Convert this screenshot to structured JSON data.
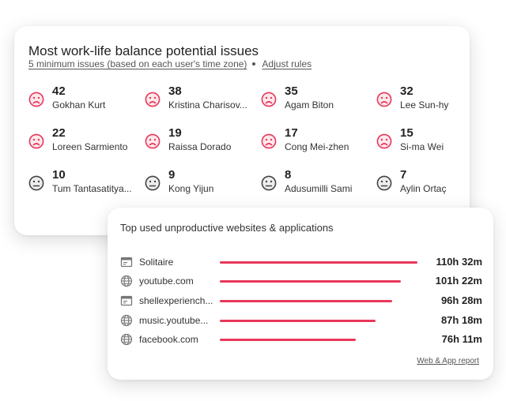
{
  "issues_card": {
    "title": "Most work-life balance potential issues",
    "criteria_link": "5 minimum issues (based on each user's time zone)",
    "adjust_link": "Adjust rules",
    "colors": {
      "sad": "#e8375a",
      "neutral": "#444444"
    },
    "users": [
      {
        "count": "42",
        "name": "Gokhan Kurt",
        "face": "sad"
      },
      {
        "count": "38",
        "name": "Kristina Charisov...",
        "face": "sad"
      },
      {
        "count": "35",
        "name": "Agam Biton",
        "face": "sad"
      },
      {
        "count": "32",
        "name": "Lee Sun-hy",
        "face": "sad"
      },
      {
        "count": "22",
        "name": "Loreen Sarmiento",
        "face": "sad"
      },
      {
        "count": "19",
        "name": "Raissa Dorado",
        "face": "sad"
      },
      {
        "count": "17",
        "name": "Cong Mei-zhen",
        "face": "sad"
      },
      {
        "count": "15",
        "name": "Si-ma Wei",
        "face": "sad"
      },
      {
        "count": "10",
        "name": "Tum Tantasatitya...",
        "face": "neutral"
      },
      {
        "count": "9",
        "name": "Kong Yijun",
        "face": "neutral"
      },
      {
        "count": "8",
        "name": "Adusumilli Sami",
        "face": "neutral"
      },
      {
        "count": "7",
        "name": "Aylin Ortaç",
        "face": "neutral"
      }
    ]
  },
  "apps_card": {
    "title": "Top used unproductive websites & applications",
    "bar_color": "#e8375a",
    "apps": [
      {
        "name": "Solitaire",
        "time": "110h 32m",
        "minutes": 6632,
        "icon": "app-window-icon"
      },
      {
        "name": "youtube.com",
        "time": "101h 22m",
        "minutes": 6082,
        "icon": "globe-icon"
      },
      {
        "name": "shellexperiench...",
        "time": "96h 28m",
        "minutes": 5788,
        "icon": "app-window-icon"
      },
      {
        "name": "music.youtube...",
        "time": "87h 18m",
        "minutes": 5238,
        "icon": "globe-icon"
      },
      {
        "name": "facebook.com",
        "time": "76h 11m",
        "minutes": 4571,
        "icon": "globe-icon"
      }
    ],
    "report_link": "Web & App report"
  }
}
